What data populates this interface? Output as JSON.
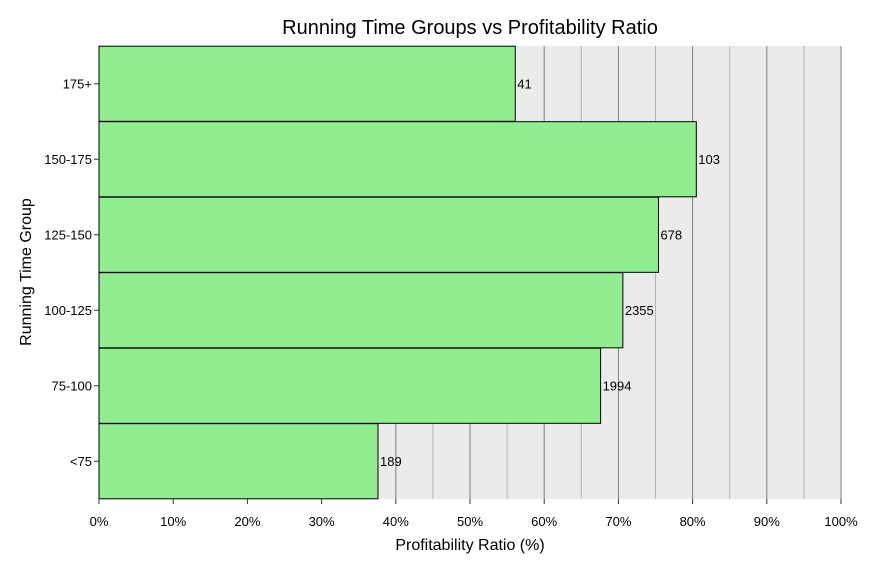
{
  "chart_data": {
    "type": "bar",
    "orientation": "horizontal",
    "title": "Running Time Groups vs Profitability Ratio",
    "xlabel": "Profitability Ratio (%)",
    "ylabel": "Running Time Group",
    "categories": [
      "<75",
      "75-100",
      "100-125",
      "125-150",
      "150-175",
      "175+"
    ],
    "values": [
      37.6,
      67.6,
      70.6,
      75.4,
      80.5,
      56.1
    ],
    "data_labels": [
      "189",
      "1994",
      "2355",
      "678",
      "103",
      "41"
    ],
    "xlim": [
      0,
      100
    ],
    "x_ticks": [
      0,
      10,
      20,
      30,
      40,
      50,
      60,
      70,
      80,
      90,
      100
    ],
    "x_tick_labels": [
      "0%",
      "10%",
      "20%",
      "30%",
      "40%",
      "50%",
      "60%",
      "70%",
      "80%",
      "90%",
      "100%"
    ],
    "grid": true,
    "legend": "none",
    "colors": {
      "bar_fill": "#90ee90",
      "bar_stroke": "#000000",
      "panel_bg": "#ebebeb",
      "grid_major": "#808080",
      "grid_minor": "#b3b3b3"
    }
  }
}
